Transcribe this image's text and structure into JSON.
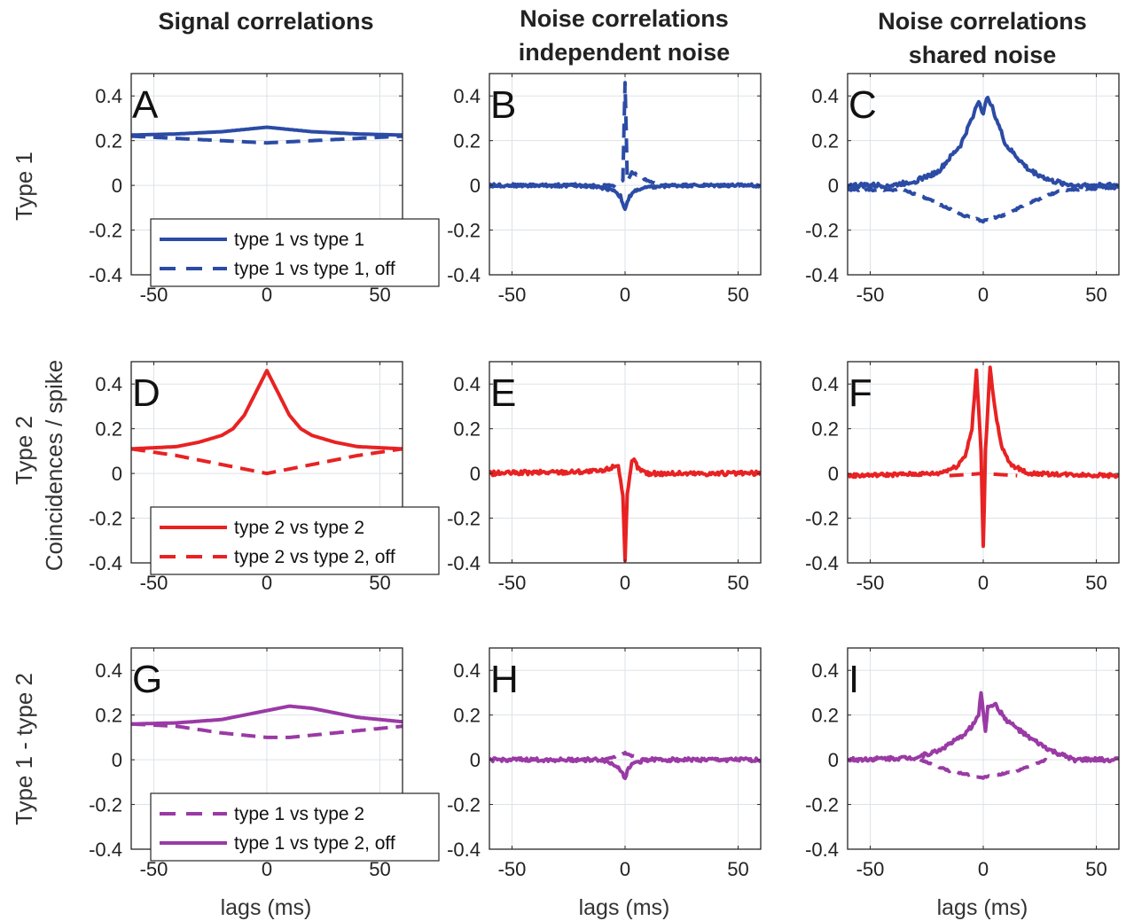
{
  "figure": {
    "column_titles": [
      [
        "Signal correlations"
      ],
      [
        "Noise correlations",
        "independent noise"
      ],
      [
        "Noise correlations",
        "shared noise"
      ]
    ],
    "row_labels": [
      "Type 1",
      "Type 2",
      "Type 1 - type 2"
    ],
    "shared_ylabel": "Coincidences / spike",
    "xlabel": "lags (ms)"
  },
  "chart_data": [
    {
      "id": "A",
      "type": "line",
      "xlim": [
        -60,
        60
      ],
      "ylim": [
        -0.4,
        0.5
      ],
      "xticks": [
        -50,
        0,
        50
      ],
      "yticks": [
        -0.4,
        -0.2,
        0,
        0.2,
        0.4
      ],
      "grid": true,
      "legend": {
        "placement": "bottom-left"
      },
      "series": [
        {
          "name": "type 1 vs  type 1",
          "color": "#2b4ba5",
          "dash": false,
          "legend": true,
          "x": [
            -60,
            -40,
            -20,
            0,
            20,
            40,
            60
          ],
          "y": [
            0.225,
            0.23,
            0.24,
            0.26,
            0.24,
            0.23,
            0.225
          ]
        },
        {
          "name": "type 1 vs type 1, off",
          "color": "#2b4ba5",
          "dash": true,
          "legend": true,
          "x": [
            -60,
            -40,
            -20,
            0,
            20,
            40,
            60
          ],
          "y": [
            0.22,
            0.21,
            0.2,
            0.19,
            0.2,
            0.21,
            0.22
          ]
        }
      ]
    },
    {
      "id": "B",
      "type": "line",
      "xlim": [
        -60,
        60
      ],
      "ylim": [
        -0.4,
        0.5
      ],
      "xticks": [
        -50,
        0,
        50
      ],
      "yticks": [
        -0.4,
        -0.2,
        0,
        0.2,
        0.4
      ],
      "grid": true,
      "series": [
        {
          "color": "#2b4ba5",
          "dash": false,
          "noise": 0.007,
          "x": [
            -60,
            -20,
            -10,
            -5,
            -2,
            0,
            2,
            5,
            10,
            20,
            60
          ],
          "y": [
            0,
            0,
            -0.01,
            -0.02,
            -0.05,
            -0.11,
            -0.05,
            -0.02,
            -0.01,
            0,
            0
          ]
        },
        {
          "color": "#2b4ba5",
          "dash": true,
          "noise": 0.004,
          "x": [
            -60,
            -15,
            -5,
            -1,
            0,
            1,
            3,
            5,
            10,
            15,
            60
          ],
          "y": [
            0,
            0,
            0,
            0.02,
            0.46,
            0.02,
            0.06,
            0.05,
            0.02,
            0,
            0
          ]
        }
      ]
    },
    {
      "id": "C",
      "type": "line",
      "xlim": [
        -60,
        60
      ],
      "ylim": [
        -0.4,
        0.5
      ],
      "xticks": [
        -50,
        0,
        50
      ],
      "yticks": [
        -0.4,
        -0.2,
        0,
        0.2,
        0.4
      ],
      "grid": true,
      "series": [
        {
          "color": "#2b4ba5",
          "dash": false,
          "noise": 0.01,
          "x": [
            -60,
            -40,
            -30,
            -20,
            -10,
            -5,
            -2,
            0,
            2,
            5,
            10,
            20,
            30,
            40,
            60
          ],
          "y": [
            0,
            0,
            0.02,
            0.06,
            0.18,
            0.3,
            0.38,
            0.32,
            0.4,
            0.32,
            0.18,
            0.07,
            0.02,
            0,
            0
          ]
        },
        {
          "color": "#2b4ba5",
          "dash": true,
          "noise": 0.004,
          "x": [
            -60,
            -35,
            -20,
            -10,
            0,
            10,
            20,
            35,
            60
          ],
          "y": [
            -0.02,
            -0.02,
            -0.08,
            -0.13,
            -0.16,
            -0.13,
            -0.08,
            -0.02,
            -0.01
          ]
        }
      ]
    },
    {
      "id": "D",
      "type": "line",
      "xlim": [
        -60,
        60
      ],
      "ylim": [
        -0.4,
        0.5
      ],
      "xticks": [
        -50,
        0,
        50
      ],
      "yticks": [
        -0.4,
        -0.2,
        0,
        0.2,
        0.4
      ],
      "grid": true,
      "legend": {
        "placement": "bottom-left"
      },
      "series": [
        {
          "name": "type 2 vs  type 2",
          "color": "#e82223",
          "dash": false,
          "legend": true,
          "x": [
            -60,
            -40,
            -30,
            -20,
            -15,
            -10,
            -5,
            0,
            5,
            10,
            15,
            20,
            30,
            40,
            60
          ],
          "y": [
            0.11,
            0.12,
            0.14,
            0.17,
            0.2,
            0.26,
            0.36,
            0.46,
            0.36,
            0.26,
            0.2,
            0.17,
            0.14,
            0.12,
            0.11
          ]
        },
        {
          "name": "type 2 vs type 2, off",
          "color": "#e82223",
          "dash": true,
          "legend": true,
          "x": [
            -60,
            -40,
            -20,
            0,
            20,
            40,
            60
          ],
          "y": [
            0.11,
            0.08,
            0.04,
            0.0,
            0.04,
            0.08,
            0.11
          ]
        }
      ]
    },
    {
      "id": "E",
      "type": "line",
      "xlim": [
        -60,
        60
      ],
      "ylim": [
        -0.4,
        0.5
      ],
      "xticks": [
        -50,
        0,
        50
      ],
      "yticks": [
        -0.4,
        -0.2,
        0,
        0.2,
        0.4
      ],
      "grid": true,
      "series": [
        {
          "color": "#e82223",
          "dash": false,
          "noise": 0.01,
          "x": [
            -60,
            -10,
            -3,
            -1,
            0,
            1,
            3,
            4,
            6,
            10,
            60
          ],
          "y": [
            0,
            0.01,
            0.04,
            -0.1,
            -0.38,
            -0.1,
            0.05,
            0.06,
            0.02,
            0,
            0
          ]
        }
      ]
    },
    {
      "id": "F",
      "type": "line",
      "xlim": [
        -60,
        60
      ],
      "ylim": [
        -0.4,
        0.5
      ],
      "xticks": [
        -50,
        0,
        50
      ],
      "yticks": [
        -0.4,
        -0.2,
        0,
        0.2,
        0.4
      ],
      "grid": true,
      "series": [
        {
          "color": "#e82223",
          "dash": false,
          "noise": 0.008,
          "x": [
            -60,
            -20,
            -12,
            -8,
            -5,
            -3,
            -1,
            0,
            1,
            3,
            5,
            8,
            12,
            20,
            60
          ],
          "y": [
            -0.01,
            0,
            0.03,
            0.08,
            0.2,
            0.46,
            0.1,
            -0.33,
            0.1,
            0.48,
            0.3,
            0.12,
            0.04,
            0,
            -0.01
          ]
        },
        {
          "color": "#e82223",
          "dash": true,
          "noise": 0.0,
          "x": [
            -15,
            0,
            15
          ],
          "y": [
            -0.01,
            0.0,
            -0.01
          ]
        }
      ]
    },
    {
      "id": "G",
      "type": "line",
      "xlim": [
        -60,
        60
      ],
      "ylim": [
        -0.4,
        0.5
      ],
      "xticks": [
        -50,
        0,
        50
      ],
      "yticks": [
        -0.4,
        -0.2,
        0,
        0.2,
        0.4
      ],
      "grid": true,
      "legend": {
        "placement": "bottom-left"
      },
      "series": [
        {
          "name": "type 1 vs type 2, off",
          "color": "#9a3aa5",
          "dash": false,
          "legend": true,
          "x": [
            -60,
            -40,
            -20,
            -10,
            0,
            10,
            20,
            30,
            40,
            60
          ],
          "y": [
            0.16,
            0.165,
            0.18,
            0.2,
            0.22,
            0.24,
            0.23,
            0.21,
            0.19,
            0.17
          ]
        },
        {
          "name": "type 1 vs  type 2",
          "color": "#9a3aa5",
          "dash": true,
          "legend": true,
          "x": [
            -60,
            -40,
            -20,
            0,
            10,
            20,
            40,
            60
          ],
          "y": [
            0.16,
            0.15,
            0.12,
            0.1,
            0.1,
            0.11,
            0.13,
            0.15
          ]
        }
      ]
    },
    {
      "id": "H",
      "type": "line",
      "xlim": [
        -60,
        60
      ],
      "ylim": [
        -0.4,
        0.5
      ],
      "xticks": [
        -50,
        0,
        50
      ],
      "yticks": [
        -0.4,
        -0.2,
        0,
        0.2,
        0.4
      ],
      "grid": true,
      "series": [
        {
          "color": "#9a3aa5",
          "dash": false,
          "noise": 0.008,
          "x": [
            -60,
            -10,
            -3,
            0,
            2,
            5,
            10,
            60
          ],
          "y": [
            0,
            0,
            -0.03,
            -0.08,
            -0.03,
            -0.01,
            0,
            0
          ]
        },
        {
          "color": "#9a3aa5",
          "dash": true,
          "noise": 0.003,
          "x": [
            -10,
            -2,
            0,
            2,
            10
          ],
          "y": [
            0,
            0.02,
            0.03,
            0.02,
            0
          ]
        }
      ]
    },
    {
      "id": "I",
      "type": "line",
      "xlim": [
        -60,
        60
      ],
      "ylim": [
        -0.4,
        0.5
      ],
      "xticks": [
        -50,
        0,
        50
      ],
      "yticks": [
        -0.4,
        -0.2,
        0,
        0.2,
        0.4
      ],
      "grid": true,
      "series": [
        {
          "color": "#9a3aa5",
          "dash": false,
          "noise": 0.009,
          "x": [
            -60,
            -30,
            -20,
            -10,
            -5,
            -2,
            -1,
            0,
            1,
            2,
            5,
            10,
            20,
            30,
            40,
            60
          ],
          "y": [
            0,
            0.01,
            0.04,
            0.1,
            0.15,
            0.2,
            0.3,
            0.22,
            0.12,
            0.24,
            0.25,
            0.18,
            0.1,
            0.04,
            0,
            0
          ]
        },
        {
          "color": "#9a3aa5",
          "dash": true,
          "noise": 0.003,
          "x": [
            -28,
            -15,
            -5,
            0,
            5,
            15,
            28
          ],
          "y": [
            0,
            -0.05,
            -0.07,
            -0.08,
            -0.07,
            -0.05,
            0
          ]
        }
      ]
    }
  ]
}
